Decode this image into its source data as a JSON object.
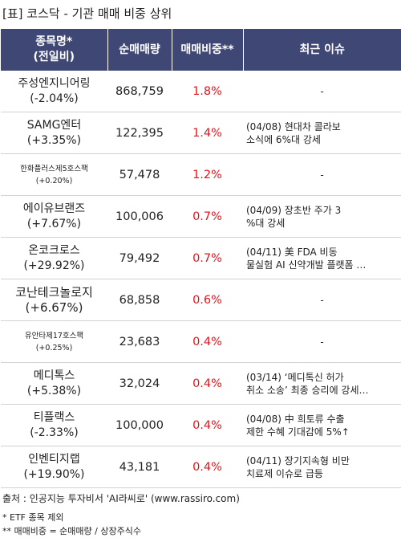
{
  "title": "[표] 코스닥 - 기관 매매 비중 상위",
  "headers": {
    "name_line1": "종목명*",
    "name_line2": "(전일비)",
    "volume": "순매매량",
    "ratio": "매매비중**",
    "issue": "최근 이슈"
  },
  "rows": [
    {
      "name": "주성엔지니어링",
      "change": "(-2.04%)",
      "volume": "868,759",
      "ratio": "1.8%",
      "issue1": "-",
      "issue2": ""
    },
    {
      "name": "SAMG엔터",
      "change": "(+3.35%)",
      "volume": "122,395",
      "ratio": "1.4%",
      "issue1": "(04/08) 현대차 콜라보",
      "issue2": "소식에 6%대 강세"
    },
    {
      "name": "한화플러스제5호스팩",
      "change": "(+0.20%)",
      "volume": "57,478",
      "ratio": "1.2%",
      "issue1": "-",
      "issue2": ""
    },
    {
      "name": "에이유브랜즈",
      "change": "(+7.67%)",
      "volume": "100,006",
      "ratio": "0.7%",
      "issue1": "(04/09) 장초반 주가 3",
      "issue2": "%대 강세"
    },
    {
      "name": "온코크로스",
      "change": "(+29.92%)",
      "volume": "79,492",
      "ratio": "0.7%",
      "issue1": "(04/11) 美 FDA 비동",
      "issue2": "물실험 AI 신약개발 플랫폼 …"
    },
    {
      "name": "코난테크놀로지",
      "change": "(+6.67%)",
      "volume": "68,858",
      "ratio": "0.6%",
      "issue1": "-",
      "issue2": ""
    },
    {
      "name": "유안타제17호스팩",
      "change": "(+0.25%)",
      "volume": "23,683",
      "ratio": "0.4%",
      "issue1": "-",
      "issue2": ""
    },
    {
      "name": "메디톡스",
      "change": "(+5.38%)",
      "volume": "32,024",
      "ratio": "0.4%",
      "issue1": "(03/14) ‘메디톡신 허가",
      "issue2": "취소 소송’ 최종 승리에 강세…"
    },
    {
      "name": "티플랙스",
      "change": "(-2.33%)",
      "volume": "100,000",
      "ratio": "0.4%",
      "issue1": "(04/08) 中 희토류 수출",
      "issue2": "제한 수혜 기대감에 5%↑"
    },
    {
      "name": "인벤티지랩",
      "change": "(+19.90%)",
      "volume": "43,181",
      "ratio": "0.4%",
      "issue1": "(04/11) 장기지속형 비만",
      "issue2": "치료제 이슈로 급등"
    }
  ],
  "source": "출처 : 인공지능 투자비서 'AI라씨로' (www.rassiro.com)",
  "note1": "* ETF 종목 제외",
  "note2": "** 매매비중 = 순매매량 / 상장주식수"
}
